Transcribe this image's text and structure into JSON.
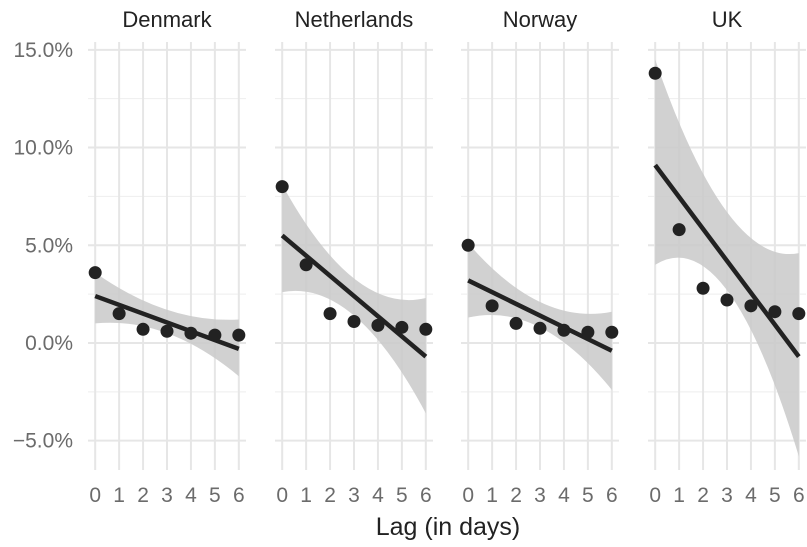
{
  "chart_data": {
    "type": "scatter",
    "facet_by": "country",
    "xlabel": "Lag (in days)",
    "ylabel": "",
    "x_ticks": [
      0,
      1,
      2,
      3,
      4,
      5,
      6
    ],
    "y_ticks": [
      -5.0,
      0.0,
      5.0,
      10.0,
      15.0
    ],
    "y_tick_labels": [
      "−5.0%",
      "0.0%",
      "5.0%",
      "10.0%",
      "15.0%"
    ],
    "xlim": [
      -0.3,
      6.3
    ],
    "ylim": [
      -6.5,
      15.4
    ],
    "grid": true,
    "colors": {
      "points": "#222222",
      "fit_line": "#222222",
      "ribbon": "#c9c9c9",
      "grid": "#e6e6e6"
    },
    "panels": [
      {
        "name": "Denmark",
        "x": [
          0,
          1,
          2,
          3,
          4,
          5,
          6
        ],
        "y": [
          3.6,
          1.5,
          0.7,
          0.6,
          0.5,
          0.4,
          0.4
        ],
        "fit": {
          "y_at_0": 2.4,
          "y_at_6": -0.3
        },
        "ribbon": {
          "x": [
            0,
            3,
            6
          ],
          "lower": [
            1.0,
            0.5,
            -1.7
          ],
          "upper": [
            3.6,
            1.7,
            1.2
          ]
        }
      },
      {
        "name": "Netherlands",
        "x": [
          0,
          1,
          2,
          3,
          4,
          5,
          6
        ],
        "y": [
          8.0,
          4.0,
          1.5,
          1.1,
          0.9,
          0.8,
          0.7
        ],
        "fit": {
          "y_at_0": 5.5,
          "y_at_6": -0.7
        },
        "ribbon": {
          "x": [
            0,
            3,
            6
          ],
          "lower": [
            2.6,
            1.4,
            -3.6
          ],
          "upper": [
            8.1,
            3.3,
            2.3
          ]
        }
      },
      {
        "name": "Norway",
        "x": [
          0,
          1,
          2,
          3,
          4,
          5,
          6
        ],
        "y": [
          5.0,
          1.9,
          1.0,
          0.75,
          0.65,
          0.55,
          0.55
        ],
        "fit": {
          "y_at_0": 3.2,
          "y_at_6": -0.4
        },
        "ribbon": {
          "x": [
            0,
            3,
            6
          ],
          "lower": [
            1.3,
            0.8,
            -2.4
          ],
          "upper": [
            5.1,
            2.1,
            1.6
          ]
        }
      },
      {
        "name": "UK",
        "x": [
          0,
          1,
          2,
          3,
          4,
          5,
          6
        ],
        "y": [
          13.8,
          5.8,
          2.8,
          2.2,
          1.9,
          1.6,
          1.5
        ],
        "fit": {
          "y_at_0": 9.1,
          "y_at_6": -0.7
        },
        "ribbon": {
          "x": [
            0,
            3,
            6
          ],
          "lower": [
            4.0,
            2.7,
            -5.8
          ],
          "upper": [
            14.5,
            6.7,
            4.6
          ]
        }
      }
    ]
  }
}
